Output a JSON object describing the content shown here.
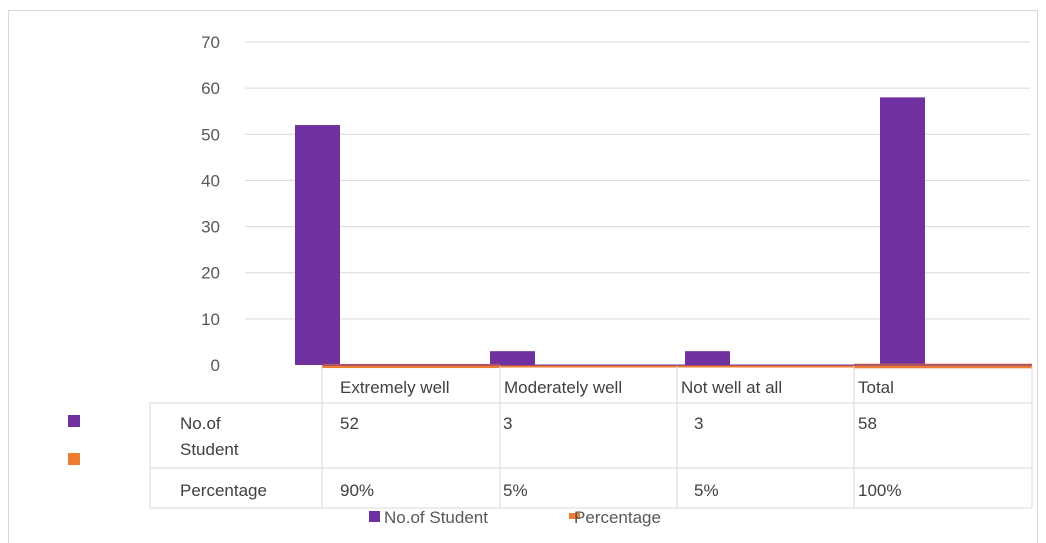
{
  "colors": {
    "series1": "#7030a0",
    "series2": "#ed7d31",
    "grid": "#d9d9d9",
    "table_border": "#d9d9d9"
  },
  "chart_data": {
    "type": "bar",
    "categories": [
      "Extremely well",
      "Moderately well",
      "Not well at all",
      "Total"
    ],
    "series": [
      {
        "name": "No.of Student",
        "values": [
          52,
          3,
          3,
          58
        ],
        "display": [
          "52",
          "3",
          "3",
          "58"
        ],
        "label_lines": [
          "No.of",
          "Student"
        ]
      },
      {
        "name": "Percentage",
        "values": [
          0.9,
          0.05,
          0.05,
          1.0
        ],
        "display": [
          "90%",
          "5%",
          "5%",
          "100%"
        ],
        "label_lines": [
          "Percentage"
        ]
      }
    ],
    "title": "",
    "xlabel": "",
    "ylabel": "",
    "ylim": [
      0,
      70
    ],
    "yticks": [
      0,
      10,
      20,
      30,
      40,
      50,
      60,
      70
    ],
    "grid": true,
    "data_table": true,
    "legend_position": "bottom"
  }
}
